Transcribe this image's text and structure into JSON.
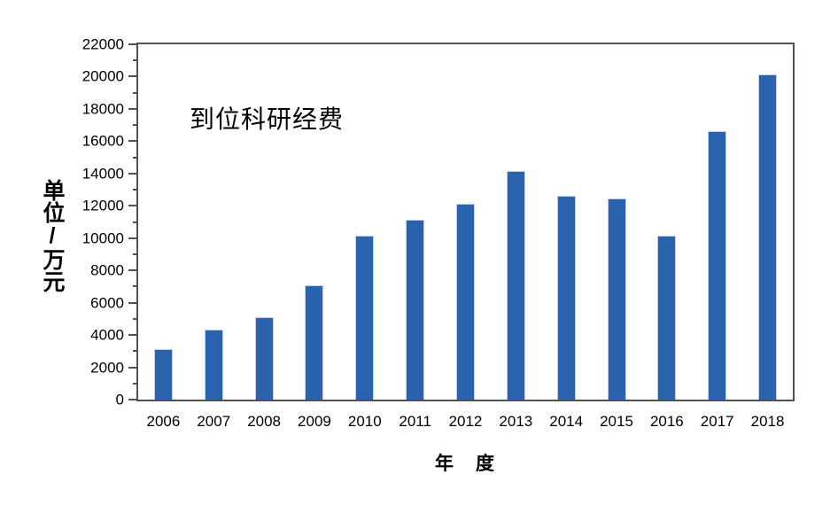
{
  "chart_data": {
    "type": "bar",
    "annotation": "到位科研经费",
    "xlabel": "年　度",
    "ylabel": "单位/万元",
    "categories": [
      "2006",
      "2007",
      "2008",
      "2009",
      "2010",
      "2011",
      "2012",
      "2013",
      "2014",
      "2015",
      "2016",
      "2017",
      "2018"
    ],
    "series": [
      {
        "name": "到位科研经费",
        "values": [
          3150,
          4350,
          5100,
          7100,
          10150,
          11120,
          12110,
          14150,
          12640,
          12480,
          10170,
          16600,
          20130
        ]
      }
    ],
    "ylim": [
      0,
      22000
    ],
    "ytick_step": 2000,
    "yminor_step": 1000,
    "grid": false,
    "legend_position": "none",
    "colors": {
      "bar_fill": "#2a63ad",
      "bar_edge": "#c9cee8",
      "axis": "#515151",
      "text": "#000000",
      "background": "#ffffff"
    }
  }
}
